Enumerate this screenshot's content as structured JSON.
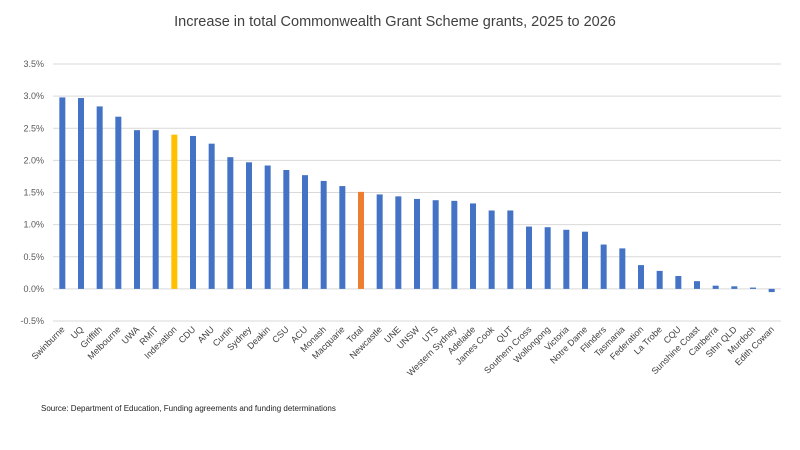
{
  "chart_data": {
    "type": "bar",
    "title": "Increase in total Commonwealth Grant Scheme grants, 2025 to 2026",
    "xlabel": "",
    "ylabel": "",
    "ylim": [
      -0.5,
      3.5
    ],
    "y_ticks": [
      "-0.5%",
      "0.0%",
      "0.5%",
      "1.0%",
      "1.5%",
      "2.0%",
      "2.5%",
      "3.0%",
      "3.5%"
    ],
    "grid": true,
    "legend": "none",
    "colors": {
      "default": "#4472c4",
      "Indexation": "#ffc000",
      "Total": "#ed7d31"
    },
    "categories": [
      "Swinburne",
      "UQ",
      "Griffith",
      "Melbourne",
      "UWA",
      "RMIT",
      "Indexation",
      "CDU",
      "ANU",
      "Curtin",
      "Sydney",
      "Deakin",
      "CSU",
      "ACU",
      "Monash",
      "Macquarie",
      "Total",
      "Newcastle",
      "UNE",
      "UNSW",
      "UTS",
      "Western Sydney",
      "Adelaide",
      "James Cook",
      "QUT",
      "Southern Cross",
      "Wollongong",
      "Victoria",
      "Notre Dame",
      "Flinders",
      "Tasmania",
      "Federation",
      "La Trobe",
      "CQU",
      "Sunshine Coast",
      "Canberra",
      "Sthn QLD",
      "Murdoch",
      "Edith Cowan"
    ],
    "values": [
      2.98,
      2.97,
      2.84,
      2.68,
      2.47,
      2.47,
      2.4,
      2.38,
      2.26,
      2.05,
      1.97,
      1.92,
      1.85,
      1.77,
      1.68,
      1.6,
      1.51,
      1.47,
      1.44,
      1.4,
      1.38,
      1.37,
      1.33,
      1.22,
      1.22,
      0.97,
      0.96,
      0.92,
      0.89,
      0.69,
      0.63,
      0.37,
      0.28,
      0.2,
      0.12,
      0.05,
      0.04,
      0.02,
      -0.05
    ]
  },
  "source": "Source: Department of Education, Funding agreements and funding determinations"
}
